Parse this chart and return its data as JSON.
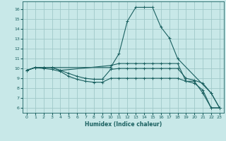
{
  "title": "",
  "xlabel": "Humidex (Indice chaleur)",
  "ylabel": "",
  "bg_color": "#c8e8e8",
  "grid_color": "#a0c8c8",
  "line_color": "#1a6060",
  "xlim": [
    -0.5,
    23.5
  ],
  "ylim": [
    5.5,
    16.8
  ],
  "yticks": [
    6,
    7,
    8,
    9,
    10,
    11,
    12,
    13,
    14,
    15,
    16
  ],
  "xticks": [
    0,
    1,
    2,
    3,
    4,
    5,
    6,
    7,
    8,
    9,
    10,
    11,
    12,
    13,
    14,
    15,
    16,
    17,
    18,
    19,
    20,
    21,
    22,
    23
  ],
  "curves": [
    {
      "x": [
        0,
        1,
        2,
        3,
        10,
        11,
        12,
        13,
        14,
        15,
        16,
        17,
        18,
        22,
        23
      ],
      "y": [
        9.8,
        10.1,
        10.1,
        10.1,
        10.1,
        11.5,
        14.8,
        16.2,
        16.2,
        16.2,
        14.2,
        13.1,
        11.0,
        7.5,
        6.0
      ]
    },
    {
      "x": [
        0,
        1,
        2,
        3,
        4,
        10,
        11,
        12,
        13,
        14,
        15,
        16,
        17,
        18,
        19,
        20,
        21,
        22,
        23
      ],
      "y": [
        9.8,
        10.1,
        10.1,
        10.1,
        9.8,
        10.3,
        10.5,
        10.5,
        10.5,
        10.5,
        10.5,
        10.5,
        10.5,
        10.5,
        8.7,
        8.7,
        7.5,
        6.0,
        6.0
      ]
    },
    {
      "x": [
        0,
        1,
        2,
        3,
        4,
        5,
        6,
        7,
        8,
        9,
        10,
        11,
        12,
        13,
        14,
        15,
        16,
        17,
        18,
        19,
        20,
        21,
        22,
        23
      ],
      "y": [
        9.8,
        10.1,
        10.1,
        10.1,
        9.8,
        9.5,
        9.2,
        9.0,
        8.9,
        8.9,
        9.9,
        10.0,
        10.0,
        10.0,
        10.0,
        10.0,
        10.0,
        10.0,
        10.0,
        9.0,
        8.8,
        8.5,
        7.5,
        6.0
      ]
    },
    {
      "x": [
        0,
        1,
        2,
        3,
        4,
        5,
        6,
        7,
        8,
        9,
        10,
        11,
        12,
        13,
        14,
        15,
        16,
        17,
        18,
        19,
        20,
        21,
        22,
        23
      ],
      "y": [
        9.8,
        10.1,
        10.0,
        9.9,
        9.7,
        9.2,
        8.9,
        8.7,
        8.6,
        8.6,
        9.0,
        9.0,
        9.0,
        9.0,
        9.0,
        9.0,
        9.0,
        9.0,
        9.0,
        8.7,
        8.5,
        7.8,
        6.0,
        6.0
      ]
    }
  ]
}
